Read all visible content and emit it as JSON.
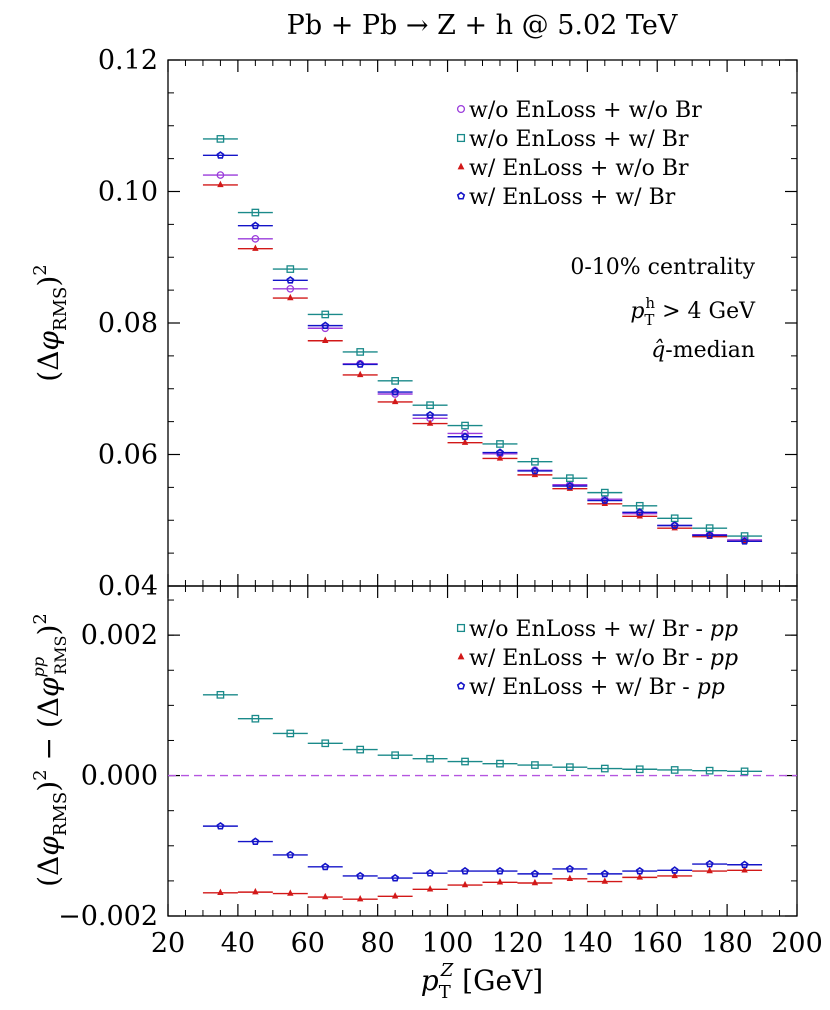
{
  "figure": {
    "title": "Pb + Pb → Z + h @ 5.02 TeV",
    "xlabel_main": "p",
    "xlabel_sup": "Z",
    "xlabel_sub": "T",
    "xlabel_unit": "[GeV]"
  },
  "colors": {
    "purple": "#9a3bdb",
    "teal": "#1a8a8a",
    "red": "#d21818",
    "blue": "#1414c8",
    "zero_line": "#b455e0"
  },
  "chart_data": [
    {
      "type": "scatter",
      "panel": "top",
      "ylabel": "(Δφ_RMS)²",
      "xlim": [
        20,
        200
      ],
      "ylim": [
        0.04,
        0.12
      ],
      "xticks": [
        20,
        40,
        60,
        80,
        100,
        120,
        140,
        160,
        180,
        200
      ],
      "ytick_labels": [
        "0.12",
        "0.10",
        "0.08",
        "0.06",
        "0.04"
      ],
      "yticks": [
        0.12,
        0.1,
        0.08,
        0.06,
        0.04
      ],
      "grid": false,
      "legend_position": "top-right",
      "annotations": [
        "0-10% centrality",
        "p_T^h > 4 GeV",
        "q̂-median"
      ],
      "x": [
        35,
        45,
        55,
        65,
        75,
        85,
        95,
        105,
        115,
        125,
        135,
        145,
        155,
        165,
        175,
        185
      ],
      "x_bin_halfwidth": 5,
      "series": [
        {
          "name": "w/o EnLoss + w/o Br",
          "marker": "circle",
          "color": "purple",
          "values": [
            0.1025,
            0.0928,
            0.0852,
            0.0792,
            0.0738,
            0.0692,
            0.0655,
            0.0632,
            0.0601,
            0.0576,
            0.0554,
            0.0532,
            0.051,
            0.0492,
            0.0478,
            0.047
          ]
        },
        {
          "name": "w/o EnLoss + w/ Br",
          "marker": "square",
          "color": "teal",
          "values": [
            0.108,
            0.0968,
            0.0882,
            0.0813,
            0.0756,
            0.0712,
            0.0675,
            0.0644,
            0.0616,
            0.0589,
            0.0564,
            0.0542,
            0.0522,
            0.0503,
            0.0488,
            0.0476
          ]
        },
        {
          "name": "w/ EnLoss + w/o Br",
          "marker": "triangle",
          "color": "red",
          "values": [
            0.101,
            0.0913,
            0.0838,
            0.0773,
            0.0721,
            0.068,
            0.0647,
            0.0618,
            0.0594,
            0.0569,
            0.0548,
            0.0525,
            0.0506,
            0.0488,
            0.0475,
            0.0468
          ]
        },
        {
          "name": "w/ EnLoss + w/ Br",
          "marker": "pentagon",
          "color": "blue",
          "values": [
            0.1055,
            0.0948,
            0.0865,
            0.0796,
            0.0737,
            0.0695,
            0.066,
            0.0627,
            0.0603,
            0.0575,
            0.0552,
            0.053,
            0.0512,
            0.0492,
            0.0477,
            0.0468
          ]
        }
      ],
      "legend_labels": [
        [
          "w/o",
          "EnLoss + w/o Br"
        ],
        [
          "w/o",
          "EnLoss + w/  Br"
        ],
        [
          "w/",
          "EnLoss + w/o Br"
        ],
        [
          "w/",
          "EnLoss + w/  Br"
        ]
      ]
    },
    {
      "type": "scatter",
      "panel": "bottom",
      "ylabel": "(Δφ_RMS)² − (Δφ^pp_RMS)²",
      "xlabel": "p_T^Z [GeV]",
      "xlim": [
        20,
        200
      ],
      "ylim": [
        -0.002,
        0.0027
      ],
      "xticks": [
        20,
        40,
        60,
        80,
        100,
        120,
        140,
        160,
        180,
        200
      ],
      "xtick_labels": [
        "20",
        "40",
        "60",
        "80",
        "100",
        "120",
        "140",
        "160",
        "180",
        "200"
      ],
      "yticks": [
        0.002,
        0.0,
        -0.002
      ],
      "ytick_labels": [
        "0.002",
        "0.000",
        "−0.002"
      ],
      "grid": false,
      "legend_position": "top-right",
      "reference_line": 0.0,
      "x": [
        35,
        45,
        55,
        65,
        75,
        85,
        95,
        105,
        115,
        125,
        135,
        145,
        155,
        165,
        175,
        185
      ],
      "x_bin_halfwidth": 5,
      "series": [
        {
          "name": "w/o EnLoss + w/ Br - pp",
          "marker": "square",
          "color": "teal",
          "values": [
            0.00115,
            0.00081,
            0.0006,
            0.00046,
            0.00037,
            0.00029,
            0.00024,
            0.0002,
            0.00017,
            0.00015,
            0.00012,
            0.0001,
            9e-05,
            8e-05,
            7e-05,
            6e-05
          ]
        },
        {
          "name": "w/ EnLoss + w/o Br - pp",
          "marker": "triangle",
          "color": "red",
          "values": [
            -0.00167,
            -0.00166,
            -0.00168,
            -0.00173,
            -0.00176,
            -0.00172,
            -0.00162,
            -0.00156,
            -0.00152,
            -0.00153,
            -0.00147,
            -0.00151,
            -0.00145,
            -0.00143,
            -0.00136,
            -0.00135
          ]
        },
        {
          "name": "w/ EnLoss + w/ Br - pp",
          "marker": "pentagon",
          "color": "blue",
          "values": [
            -0.00072,
            -0.00094,
            -0.00113,
            -0.0013,
            -0.00143,
            -0.00146,
            -0.00139,
            -0.00136,
            -0.00136,
            -0.0014,
            -0.00133,
            -0.0014,
            -0.00136,
            -0.00135,
            -0.00126,
            -0.00127
          ]
        }
      ],
      "legend_labels": [
        [
          "w/o",
          "EnLoss + w/  Br - "
        ],
        [
          "w/",
          "EnLoss + w/o Br - "
        ],
        [
          "w/",
          "EnLoss + w/  Br - "
        ]
      ],
      "legend_suffix": "pp"
    }
  ]
}
